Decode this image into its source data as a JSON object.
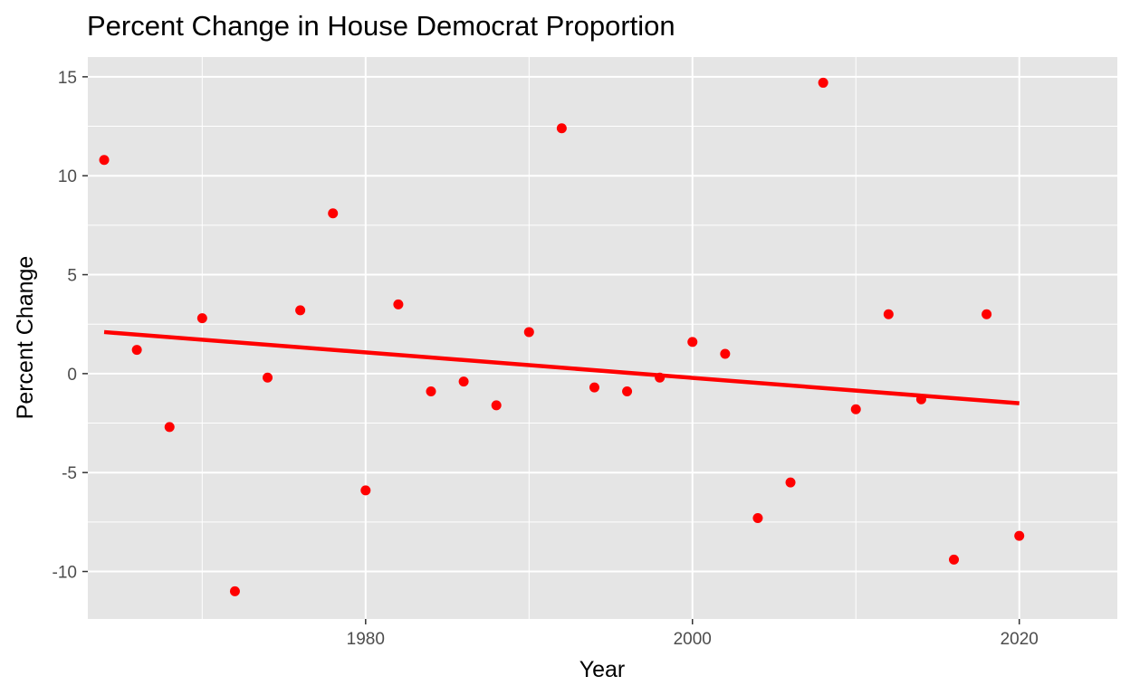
{
  "chart_data": {
    "type": "scatter",
    "title": "Percent Change in House Democrat Proportion",
    "xlabel": "Year",
    "ylabel": "Percent Change",
    "xlim": [
      1963,
      2026
    ],
    "ylim": [
      -12.4,
      16.0
    ],
    "x_ticks": [
      1980,
      2000,
      2020
    ],
    "x_tick_labels": [
      "1980",
      "2000",
      "2020"
    ],
    "y_ticks": [
      -10,
      -5,
      0,
      5,
      10,
      15
    ],
    "y_tick_labels": [
      "-10",
      "-5",
      "0",
      "5",
      "10",
      "15"
    ],
    "grid": true,
    "legend": "none",
    "colors": {
      "points": "#ff0000",
      "trend": "#ff0000",
      "panel": "#e5e5e5",
      "grid": "#ffffff"
    },
    "points": [
      {
        "x": 1964,
        "y": 10.8
      },
      {
        "x": 1966,
        "y": 1.2
      },
      {
        "x": 1968,
        "y": -2.7
      },
      {
        "x": 1970,
        "y": 2.8
      },
      {
        "x": 1972,
        "y": -11.0
      },
      {
        "x": 1974,
        "y": -0.2
      },
      {
        "x": 1976,
        "y": 3.2
      },
      {
        "x": 1978,
        "y": 8.1
      },
      {
        "x": 1980,
        "y": -5.9
      },
      {
        "x": 1982,
        "y": 3.5
      },
      {
        "x": 1984,
        "y": -0.9
      },
      {
        "x": 1986,
        "y": -0.4
      },
      {
        "x": 1988,
        "y": -1.6
      },
      {
        "x": 1990,
        "y": 2.1
      },
      {
        "x": 1992,
        "y": 12.4
      },
      {
        "x": 1994,
        "y": -0.7
      },
      {
        "x": 1996,
        "y": -0.9
      },
      {
        "x": 1998,
        "y": -0.2
      },
      {
        "x": 2000,
        "y": 1.6
      },
      {
        "x": 2002,
        "y": 1.0
      },
      {
        "x": 2004,
        "y": -7.3
      },
      {
        "x": 2006,
        "y": -5.5
      },
      {
        "x": 2008,
        "y": 14.7
      },
      {
        "x": 2010,
        "y": -1.8
      },
      {
        "x": 2012,
        "y": 3.0
      },
      {
        "x": 2014,
        "y": -1.3
      },
      {
        "x": 2016,
        "y": -9.4
      },
      {
        "x": 2018,
        "y": 3.0
      },
      {
        "x": 2020,
        "y": -8.2
      }
    ],
    "trend_line": {
      "x": [
        1964,
        2020
      ],
      "y": [
        2.1,
        -1.5
      ]
    }
  }
}
